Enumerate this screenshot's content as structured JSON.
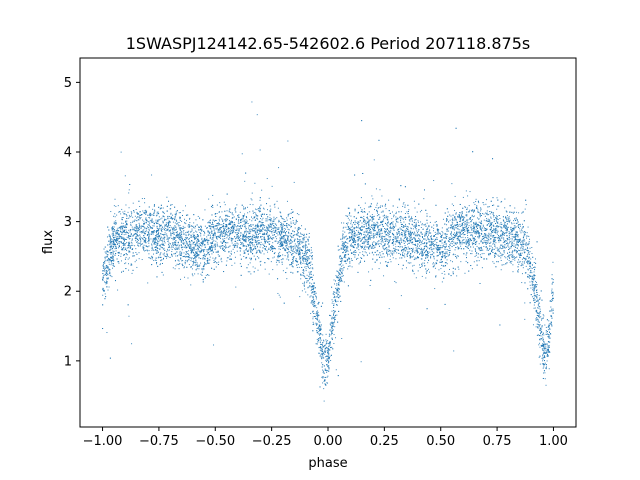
{
  "chart_data": {
    "type": "scatter",
    "title": "1SWASPJ124142.65-542602.6 Period 207118.875s",
    "xlabel": "phase",
    "ylabel": "flux",
    "xlim": [
      -1.1,
      1.1
    ],
    "ylim": [
      0.05,
      5.35
    ],
    "x_ticks": [
      -1.0,
      -0.75,
      -0.5,
      -0.25,
      0.0,
      0.25,
      0.5,
      0.75,
      1.0
    ],
    "x_tick_labels": [
      "−1.00",
      "−0.75",
      "−0.50",
      "−0.25",
      "0.00",
      "0.25",
      "0.50",
      "0.75",
      "1.00"
    ],
    "y_ticks": [
      1,
      2,
      3,
      4,
      5
    ],
    "y_tick_labels": [
      "1",
      "2",
      "3",
      "4",
      "5"
    ],
    "grid": false,
    "point_color": "#1f77b4",
    "series": [
      {
        "x": [
          -1.0,
          -0.95,
          -0.9,
          -0.85,
          -0.8,
          -0.75,
          -0.7,
          -0.65,
          -0.6,
          -0.55,
          -0.5,
          -0.45,
          -0.4,
          -0.35,
          -0.3,
          -0.25,
          -0.2,
          -0.15,
          -0.1,
          -0.08,
          -0.06,
          -0.04,
          -0.02,
          0.0,
          0.02,
          0.04,
          0.06,
          0.08,
          0.1,
          0.15,
          0.2,
          0.25,
          0.3,
          0.35,
          0.4,
          0.45,
          0.5,
          0.55,
          0.6,
          0.65,
          0.7,
          0.75,
          0.8,
          0.85,
          0.88,
          0.9,
          0.92,
          0.94,
          0.96,
          0.98,
          1.0
        ],
        "y": [
          2.1,
          2.75,
          2.8,
          2.85,
          2.85,
          2.8,
          2.85,
          2.75,
          2.65,
          2.6,
          2.75,
          2.85,
          2.85,
          2.8,
          2.85,
          2.8,
          2.75,
          2.7,
          2.5,
          2.3,
          1.9,
          1.4,
          0.95,
          1.0,
          1.5,
          2.0,
          2.4,
          2.65,
          2.75,
          2.8,
          2.85,
          2.85,
          2.8,
          2.8,
          2.7,
          2.65,
          2.6,
          2.75,
          2.85,
          2.85,
          2.8,
          2.8,
          2.8,
          2.7,
          2.6,
          2.35,
          2.0,
          1.55,
          1.05,
          1.3,
          2.1
        ]
      }
    ]
  }
}
